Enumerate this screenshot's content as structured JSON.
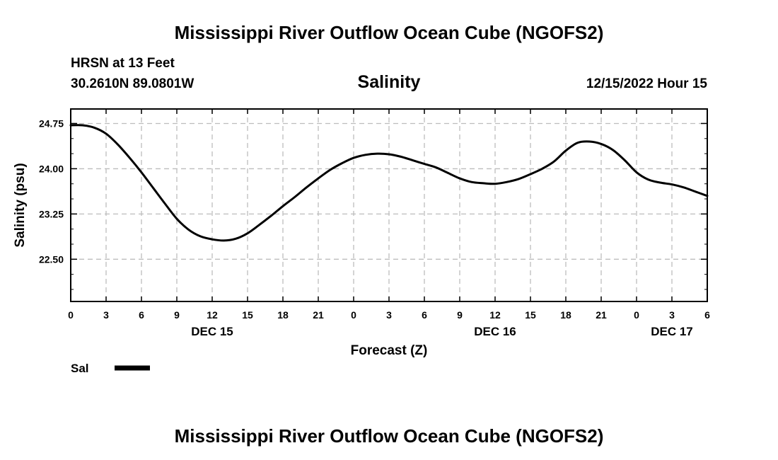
{
  "header": {
    "title": "Mississippi River Outflow Ocean Cube (NGOFS2)",
    "station": "HRSN at 13 Feet",
    "coords": "30.2610N  89.0801W",
    "parameter": "Salinity",
    "timestamp": "12/15/2022 Hour 15"
  },
  "footer": {
    "title": "Mississippi River Outflow Ocean Cube (NGOFS2)"
  },
  "chart_data": {
    "type": "line",
    "title": "Salinity",
    "xlabel": "Forecast (Z)",
    "ylabel": "Salinity (psu)",
    "ylim": [
      21.8,
      24.99
    ],
    "xlim": [
      0,
      54
    ],
    "grid": true,
    "yticks": [
      22.5,
      23.25,
      24.0,
      24.75
    ],
    "ytick_labels": [
      "22.50",
      "23.25",
      "24.00",
      "24.75"
    ],
    "xtick_labels": [
      "0",
      "3",
      "6",
      "9",
      "12",
      "15",
      "18",
      "21",
      "0",
      "3",
      "6",
      "9",
      "12",
      "15",
      "18",
      "21",
      "0",
      "3",
      "6"
    ],
    "day_labels": [
      {
        "label": "DEC 15",
        "hour": 12
      },
      {
        "label": "DEC 16",
        "hour": 36
      },
      {
        "label": "DEC 17",
        "hour": 51
      }
    ],
    "legend": {
      "position": "bottom-left",
      "entries": [
        {
          "name": "Sal",
          "color": "#000000"
        }
      ]
    },
    "series": [
      {
        "name": "Sal",
        "color": "#000000",
        "x": [
          0,
          1,
          2,
          3,
          4,
          5,
          6,
          7,
          8,
          9,
          10,
          11,
          12,
          13,
          14,
          15,
          16,
          17,
          18,
          19,
          20,
          21,
          22,
          23,
          24,
          25,
          26,
          27,
          28,
          29,
          30,
          31,
          32,
          33,
          34,
          35,
          36,
          37,
          38,
          39,
          40,
          41,
          42,
          43,
          44,
          45,
          46,
          47,
          48,
          49,
          50,
          51,
          52,
          53,
          54
        ],
        "values": [
          24.72,
          24.72,
          24.68,
          24.58,
          24.4,
          24.18,
          23.94,
          23.68,
          23.42,
          23.17,
          22.99,
          22.88,
          22.83,
          22.81,
          22.84,
          22.93,
          23.07,
          23.22,
          23.38,
          23.53,
          23.69,
          23.84,
          23.98,
          24.09,
          24.18,
          24.23,
          24.25,
          24.24,
          24.2,
          24.14,
          24.08,
          24.02,
          23.93,
          23.84,
          23.78,
          23.76,
          23.75,
          23.78,
          23.83,
          23.91,
          24.0,
          24.12,
          24.3,
          24.43,
          24.45,
          24.41,
          24.31,
          24.14,
          23.94,
          23.82,
          23.77,
          23.74,
          23.69,
          23.62,
          23.55
        ]
      }
    ]
  }
}
